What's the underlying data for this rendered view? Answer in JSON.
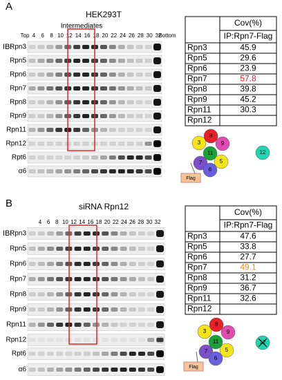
{
  "panels": [
    {
      "label": "A",
      "title": "HEK293T",
      "annotation": "Intermediates",
      "ib": "IB:",
      "fractions": [
        "Top",
        "4",
        "6",
        "8",
        "10",
        "12",
        "14",
        "16",
        "18",
        "20",
        "22",
        "24",
        "26",
        "28",
        "30",
        "32",
        "Bottom"
      ],
      "blots": [
        "Rpn3",
        "Rpn5",
        "Rpn6",
        "Rpn7",
        "Rpn8",
        "Rpn9",
        "Rpn11",
        "Rpn12",
        "Rpt6",
        "α6"
      ],
      "table": {
        "header": "Cov(%)",
        "subheader": "IP:Rpn7-Flag",
        "rows": [
          {
            "name": "Rpn3",
            "value": "45.9"
          },
          {
            "name": "Rpn5",
            "value": "29.6"
          },
          {
            "name": "Rpn6",
            "value": "23.9"
          },
          {
            "name": "Rpn7",
            "value": "57.8",
            "color": "#e8141c"
          },
          {
            "name": "Rpn8",
            "value": "39.8"
          },
          {
            "name": "Rpn9",
            "value": "45.2"
          },
          {
            "name": "Rpn11",
            "value": "30.3"
          },
          {
            "name": "Rpn12"
          }
        ]
      },
      "diagram": {
        "subunits": [
          "3",
          "8",
          "9",
          "11",
          "5",
          "7",
          "6",
          "12"
        ],
        "tag": "Flag"
      }
    },
    {
      "label": "B",
      "title": "siRNA Rpn12",
      "ib": "IB:",
      "fractions": [
        "4",
        "6",
        "8",
        "10",
        "12",
        "14",
        "16",
        "18",
        "20",
        "22",
        "24",
        "26",
        "28",
        "30",
        "32"
      ],
      "blots": [
        "Rpn3",
        "Rpn5",
        "Rpn6",
        "Rpn7",
        "Rpn8",
        "Rpn9",
        "Rpn11",
        "Rpn12",
        "Rpt6",
        "α6"
      ],
      "table": {
        "header": "Cov(%)",
        "subheader": "IP:Rpn7-Flag",
        "rows": [
          {
            "name": "Rpn3",
            "value": "47.6"
          },
          {
            "name": "Rpn5",
            "value": "33.8"
          },
          {
            "name": "Rpn6",
            "value": "27.7"
          },
          {
            "name": "Rpn7",
            "value": "49.1",
            "color": "#f08a14"
          },
          {
            "name": "Rpn8",
            "value": "31.2"
          },
          {
            "name": "Rpn9",
            "value": "36.7"
          },
          {
            "name": "Rpn11",
            "value": "32.6"
          },
          {
            "name": "Rpn12"
          }
        ]
      },
      "diagram": {
        "subunits": [
          "3",
          "8",
          "9",
          "11",
          "5",
          "7",
          "6",
          "12"
        ],
        "tag": "Flag"
      }
    }
  ]
}
